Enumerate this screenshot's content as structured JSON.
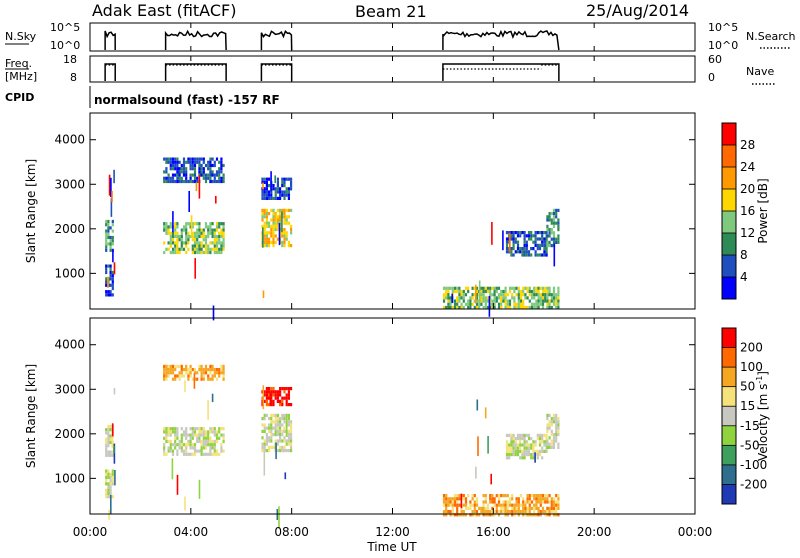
{
  "header": {
    "radar": "Adak East (fitACF)",
    "beam": "Beam 21",
    "date": "25/Aug/2014"
  },
  "panels": {
    "nsky_label": "N.Sky",
    "freq_label_line1": "Freq.",
    "freq_label_line2": "[MHz]",
    "cpid_label": "CPID",
    "nsearch_label": "N.Search",
    "nave_label": "Nave",
    "nsky_ticks": [
      "10^5",
      "10^0"
    ],
    "nsearch_ticks": [
      "10^5",
      "10^0"
    ],
    "freq_ticks": [
      "18",
      "8"
    ],
    "nave_ticks": [
      "60",
      "0"
    ],
    "cpid_text": "normalsound (fast) -157 RF"
  },
  "chart_data": [
    {
      "type": "heatmap",
      "name": "Power",
      "ylabel": "Slant Range [km]",
      "y_ticks": [
        1000,
        2000,
        3000,
        4000
      ],
      "ylim": [
        200,
        4600
      ],
      "colorbar": {
        "label": "Power [dB]",
        "ticks": [
          4,
          8,
          12,
          16,
          20,
          24,
          28
        ],
        "range": [
          0,
          32
        ],
        "colors": [
          "#0000ff",
          "#1f4fbf",
          "#2e8b57",
          "#7fc97f",
          "#ffd700",
          "#ff9900",
          "#ff6a00",
          "#ff0000"
        ]
      },
      "scatter_blocks": [
        {
          "t0": 0.6,
          "t1": 0.9,
          "r0": 1550,
          "r1": 2200,
          "level": 2
        },
        {
          "t0": 0.6,
          "t1": 0.9,
          "r0": 550,
          "r1": 1200,
          "level": 1
        },
        {
          "t0": 2.9,
          "t1": 5.3,
          "r0": 1500,
          "r1": 2150,
          "level": 3
        },
        {
          "t0": 2.9,
          "t1": 5.3,
          "r0": 3050,
          "r1": 3600,
          "level": 1
        },
        {
          "t0": 6.8,
          "t1": 8.0,
          "r0": 1600,
          "r1": 2450,
          "level": 4
        },
        {
          "t0": 6.8,
          "t1": 8.0,
          "r0": 2650,
          "r1": 3150,
          "level": 1
        },
        {
          "t0": 16.5,
          "t1": 18.1,
          "r0": 1400,
          "r1": 1950,
          "level": 1
        },
        {
          "t0": 18.1,
          "t1": 18.6,
          "r0": 1650,
          "r1": 2450,
          "level": 2
        },
        {
          "t0": 14.0,
          "t1": 18.6,
          "r0": 200,
          "r1": 700,
          "level": 3
        }
      ]
    },
    {
      "type": "heatmap",
      "name": "Velocity",
      "ylabel": "Slant Range [km]",
      "y_ticks": [
        1000,
        2000,
        3000,
        4000
      ],
      "ylim": [
        200,
        4600
      ],
      "colorbar": {
        "label": "Velocity [m s",
        "label_sup": "-1",
        "label_end": "]",
        "ticks": [
          200,
          100,
          50,
          15,
          -15,
          -50,
          -100,
          -200
        ],
        "colors": [
          "#1f3ab5",
          "#2e6f8e",
          "#3f9f5f",
          "#8fd43f",
          "#c8c8c0",
          "#f5e27a",
          "#f5a623",
          "#ff6a00",
          "#ff0000"
        ]
      },
      "scatter_blocks": [
        {
          "t0": 0.6,
          "t1": 0.9,
          "r0": 1550,
          "r1": 2200,
          "level": 4
        },
        {
          "t0": 0.6,
          "t1": 0.9,
          "r0": 600,
          "r1": 1200,
          "level": 4
        },
        {
          "t0": 2.9,
          "t1": 5.3,
          "r0": 1550,
          "r1": 2150,
          "level": 4
        },
        {
          "t0": 2.9,
          "t1": 5.3,
          "r0": 3250,
          "r1": 3550,
          "level": 6
        },
        {
          "t0": 6.8,
          "t1": 8.0,
          "r0": 1600,
          "r1": 2450,
          "level": 4
        },
        {
          "t0": 6.8,
          "t1": 8.0,
          "r0": 2650,
          "r1": 3050,
          "level": 8
        },
        {
          "t0": 16.5,
          "t1": 18.1,
          "r0": 1450,
          "r1": 2000,
          "level": 4
        },
        {
          "t0": 18.1,
          "t1": 18.6,
          "r0": 1700,
          "r1": 2450,
          "level": 4
        },
        {
          "t0": 14.0,
          "t1": 18.6,
          "r0": 200,
          "r1": 650,
          "level": 6
        }
      ]
    }
  ],
  "x_axis": {
    "label": "Time UT",
    "ticks": [
      "00:00",
      "04:00",
      "08:00",
      "12:00",
      "16:00",
      "20:00",
      "00:00"
    ],
    "range_hours": [
      0,
      24
    ]
  },
  "activity_segments_hours": [
    [
      0.6,
      1.0
    ],
    [
      3.0,
      5.4
    ],
    [
      6.8,
      8.0
    ],
    [
      14.0,
      18.6
    ]
  ],
  "nave_segments": [
    {
      "t0": 0.6,
      "t1": 1.0,
      "value": 40
    },
    {
      "t0": 3.0,
      "t1": 5.4,
      "value": 40
    },
    {
      "t0": 6.8,
      "t1": 8.0,
      "value": 40
    },
    {
      "t0": 14.0,
      "t1": 17.9,
      "value": 30
    },
    {
      "t0": 17.9,
      "t1": 18.6,
      "value": 40
    }
  ]
}
